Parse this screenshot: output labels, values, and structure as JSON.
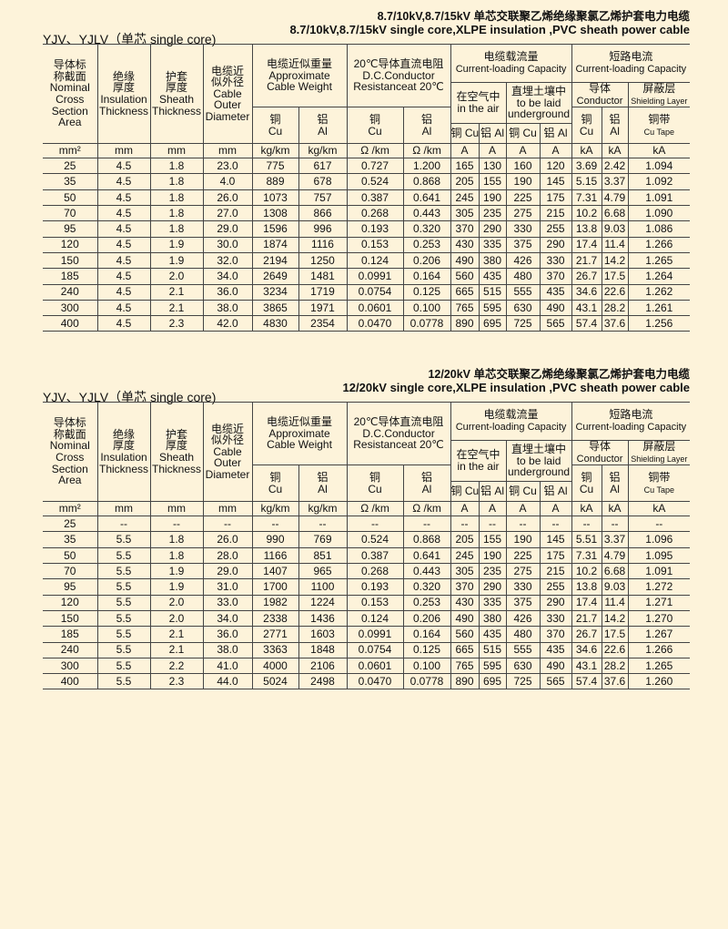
{
  "sections": [
    {
      "title_cn": "8.7/10kV,8.7/15kV  单芯交联聚乙烯绝缘聚氯乙烯护套电力电缆",
      "title_en": "8.7/10kV,8.7/15kV single  core,XLPE insulation ,PVC sheath power cable",
      "label": "YJV、YJLV（单芯  single core)",
      "rows": [
        [
          "25",
          "4.5",
          "1.8",
          "23.0",
          "775",
          "617",
          "0.727",
          "1.200",
          "165",
          "130",
          "160",
          "120",
          "3.69",
          "2.42",
          "1.094"
        ],
        [
          "35",
          "4.5",
          "1.8",
          "4.0",
          "889",
          "678",
          "0.524",
          "0.868",
          "205",
          "155",
          "190",
          "145",
          "5.15",
          "3.37",
          "1.092"
        ],
        [
          "50",
          "4.5",
          "1.8",
          "26.0",
          "1073",
          "757",
          "0.387",
          "0.641",
          "245",
          "190",
          "225",
          "175",
          "7.31",
          "4.79",
          "1.091"
        ],
        [
          "70",
          "4.5",
          "1.8",
          "27.0",
          "1308",
          "866",
          "0.268",
          "0.443",
          "305",
          "235",
          "275",
          "215",
          "10.2",
          "6.68",
          "1.090"
        ],
        [
          "95",
          "4.5",
          "1.8",
          "29.0",
          "1596",
          "996",
          "0.193",
          "0.320",
          "370",
          "290",
          "330",
          "255",
          "13.8",
          "9.03",
          "1.086"
        ],
        [
          "120",
          "4.5",
          "1.9",
          "30.0",
          "1874",
          "1116",
          "0.153",
          "0.253",
          "430",
          "335",
          "375",
          "290",
          "17.4",
          "11.4",
          "1.266"
        ],
        [
          "150",
          "4.5",
          "1.9",
          "32.0",
          "2194",
          "1250",
          "0.124",
          "0.206",
          "490",
          "380",
          "426",
          "330",
          "21.7",
          "14.2",
          "1.265"
        ],
        [
          "185",
          "4.5",
          "2.0",
          "34.0",
          "2649",
          "1481",
          "0.0991",
          "0.164",
          "560",
          "435",
          "480",
          "370",
          "26.7",
          "17.5",
          "1.264"
        ],
        [
          "240",
          "4.5",
          "2.1",
          "36.0",
          "3234",
          "1719",
          "0.0754",
          "0.125",
          "665",
          "515",
          "555",
          "435",
          "34.6",
          "22.6",
          "1.262"
        ],
        [
          "300",
          "4.5",
          "2.1",
          "38.0",
          "3865",
          "1971",
          "0.0601",
          "0.100",
          "765",
          "595",
          "630",
          "490",
          "43.1",
          "28.2",
          "1.261"
        ],
        [
          "400",
          "4.5",
          "2.3",
          "42.0",
          "4830",
          "2354",
          "0.0470",
          "0.0778",
          "890",
          "695",
          "725",
          "565",
          "57.4",
          "37.6",
          "1.256"
        ]
      ]
    },
    {
      "title_cn": "12/20kV  单芯交联聚乙烯绝缘聚氯乙烯护套电力电缆",
      "title_en": "12/20kV single  core,XLPE insulation ,PVC sheath power cable",
      "label": "YJV、YJLV（单芯  single core)",
      "rows": [
        [
          "25",
          "--",
          "--",
          "--",
          "--",
          "--",
          "--",
          "--",
          "--",
          "--",
          "--",
          "--",
          "--",
          "--",
          "--"
        ],
        [
          "35",
          "5.5",
          "1.8",
          "26.0",
          "990",
          "769",
          "0.524",
          "0.868",
          "205",
          "155",
          "190",
          "145",
          "5.51",
          "3.37",
          "1.096"
        ],
        [
          "50",
          "5.5",
          "1.8",
          "28.0",
          "1166",
          "851",
          "0.387",
          "0.641",
          "245",
          "190",
          "225",
          "175",
          "7.31",
          "4.79",
          "1.095"
        ],
        [
          "70",
          "5.5",
          "1.9",
          "29.0",
          "1407",
          "965",
          "0.268",
          "0.443",
          "305",
          "235",
          "275",
          "215",
          "10.2",
          "6.68",
          "1.091"
        ],
        [
          "95",
          "5.5",
          "1.9",
          "31.0",
          "1700",
          "1100",
          "0.193",
          "0.320",
          "370",
          "290",
          "330",
          "255",
          "13.8",
          "9.03",
          "1.272"
        ],
        [
          "120",
          "5.5",
          "2.0",
          "33.0",
          "1982",
          "1224",
          "0.153",
          "0.253",
          "430",
          "335",
          "375",
          "290",
          "17.4",
          "11.4",
          "1.271"
        ],
        [
          "150",
          "5.5",
          "2.0",
          "34.0",
          "2338",
          "1436",
          "0.124",
          "0.206",
          "490",
          "380",
          "426",
          "330",
          "21.7",
          "14.2",
          "1.270"
        ],
        [
          "185",
          "5.5",
          "2.1",
          "36.0",
          "2771",
          "1603",
          "0.0991",
          "0.164",
          "560",
          "435",
          "480",
          "370",
          "26.7",
          "17.5",
          "1.267"
        ],
        [
          "240",
          "5.5",
          "2.1",
          "38.0",
          "3363",
          "1848",
          "0.0754",
          "0.125",
          "665",
          "515",
          "555",
          "435",
          "34.6",
          "22.6",
          "1.266"
        ],
        [
          "300",
          "5.5",
          "2.2",
          "41.0",
          "4000",
          "2106",
          "0.0601",
          "0.100",
          "765",
          "595",
          "630",
          "490",
          "43.1",
          "28.2",
          "1.265"
        ],
        [
          "400",
          "5.5",
          "2.3",
          "44.0",
          "5024",
          "2498",
          "0.0470",
          "0.0778",
          "890",
          "695",
          "725",
          "565",
          "57.4",
          "37.6",
          "1.260"
        ]
      ]
    }
  ],
  "header": {
    "area_cn1": "导体标",
    "area_cn2": "称截面",
    "area_en1": "Nominal",
    "area_en2": "Cross",
    "area_en3": "Section",
    "area_en4": "Area",
    "ins_cn1": "绝缘",
    "ins_cn2": "厚度",
    "ins_en1": "Insulation",
    "ins_en2": "Thickness",
    "sh_cn1": "护套",
    "sh_cn2": "厚度",
    "sh_en1": "Sheath",
    "sh_en2": "Thickness",
    "od_cn1": "电缆近",
    "od_cn2": "似外径",
    "od_en1": "Cable",
    "od_en2": "Outer",
    "od_en3": "Diameter",
    "wt_cn": "电缆近似重量",
    "wt_en1": "Approximate",
    "wt_en2": "Cable Weight",
    "res_cn": "20℃导体直流电阻",
    "res_en1": "D.C.Conductor",
    "res_en2": "Resistanceat 20℃",
    "cur_cn": "电缆载流量",
    "cur_en": "Current-loading Capacity",
    "sc_cn": "短路电流",
    "sc_en": "Current-loading Capacity",
    "air_cn": "在空气中",
    "air_en": "in the air",
    "ug_cn": "直埋土壤中",
    "ug_en1": "to be laid",
    "ug_en2": "underground",
    "cond_cn": "导体",
    "cond_en": "Conductor",
    "shl_cn": "屏蔽层",
    "shl_en": "Shielding Layer",
    "cu_cn": "铜",
    "al_cn": "铝",
    "cu": "Cu",
    "al": "Al",
    "cu_full": "铜 Cu",
    "al_full": "铝 Al",
    "tape_cn": "铜带",
    "tape_en": "Cu Tape"
  },
  "units": [
    "mm²",
    "mm",
    "mm",
    "mm",
    "kg/km",
    "kg/km",
    "Ω /km",
    "Ω /km",
    "A",
    "A",
    "A",
    "A",
    "kA",
    "kA",
    "kA"
  ]
}
